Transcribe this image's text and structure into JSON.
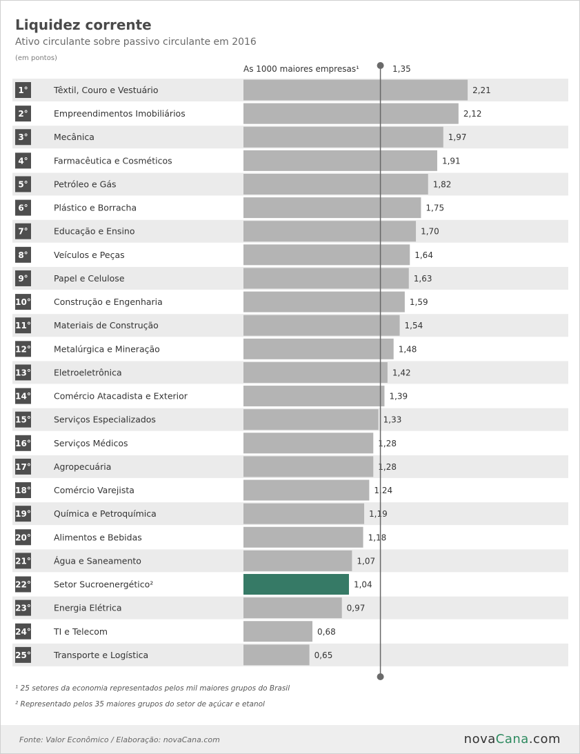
{
  "header": {
    "title": "Liquidez corrente",
    "subtitle": "Ativo circulante sobre passivo circulante em 2016",
    "unit": "(em pontos)"
  },
  "reference": {
    "label": "As 1000 maiores empresas¹",
    "value_text": "1,35",
    "value": 1.35
  },
  "colors": {
    "bar": "#b4b4b4",
    "highlight": "#367a66",
    "row_alt": "#ebebeb",
    "rank_bg": "#4e4e4e"
  },
  "chart_data": {
    "type": "bar",
    "orientation": "horizontal",
    "title": "Liquidez corrente",
    "reference_line": 1.35,
    "highlight_index": 21,
    "categories": [
      "Têxtil, Couro e Vestuário",
      "Empreendimentos Imobiliários",
      "Mecânica",
      "Farmacêutica e Cosméticos",
      "Petróleo e Gás",
      "Plástico e Borracha",
      "Educação e Ensino",
      "Veículos e Peças",
      "Papel e Celulose",
      "Construção e Engenharia",
      "Materiais de Construção",
      "Metalúrgica e Mineração",
      "Eletroeletrônica",
      "Comércio Atacadista e Exterior",
      "Serviços Especializados",
      "Serviços Médicos",
      "Agropecuária",
      "Comércio Varejista",
      "Química e Petroquímica",
      "Alimentos e Bebidas",
      "Água e Saneamento",
      "Setor Sucroenergético²",
      "Energia Elétrica",
      "TI e Telecom",
      "Transporte e Logística"
    ],
    "ranks": [
      "1°",
      "2°",
      "3°",
      "4°",
      "5°",
      "6°",
      "7°",
      "8°",
      "9°",
      "10°",
      "11°",
      "12°",
      "13°",
      "14°",
      "15°",
      "16°",
      "17°",
      "18°",
      "19°",
      "20°",
      "21°",
      "22°",
      "23°",
      "24°",
      "25°"
    ],
    "values": [
      2.21,
      2.12,
      1.97,
      1.91,
      1.82,
      1.75,
      1.7,
      1.64,
      1.63,
      1.59,
      1.54,
      1.48,
      1.42,
      1.39,
      1.33,
      1.28,
      1.28,
      1.24,
      1.19,
      1.18,
      1.07,
      1.04,
      0.97,
      0.68,
      0.65
    ],
    "value_labels": [
      "2,21",
      "2,12",
      "1,97",
      "1,91",
      "1,82",
      "1,75",
      "1,70",
      "1,64",
      "1,63",
      "1,59",
      "1,54",
      "1,48",
      "1,42",
      "1,39",
      "1,33",
      "1,28",
      "1,28",
      "1,24",
      "1,19",
      "1,18",
      "1,07",
      "1,04",
      "0,97",
      "0,68",
      "0,65"
    ]
  },
  "footnotes": {
    "note1": "¹ 25 setores da economia representados pelos mil maiores grupos do Brasil",
    "note2": "² Representado pelos 35 maiores grupos do setor de açúcar e etanol"
  },
  "footer": {
    "source": "Fonte: Valor Econômico / Elaboração: novaCana.com",
    "logo_part1": "nova",
    "logo_part2": "Cana",
    "logo_part3": ".com"
  }
}
